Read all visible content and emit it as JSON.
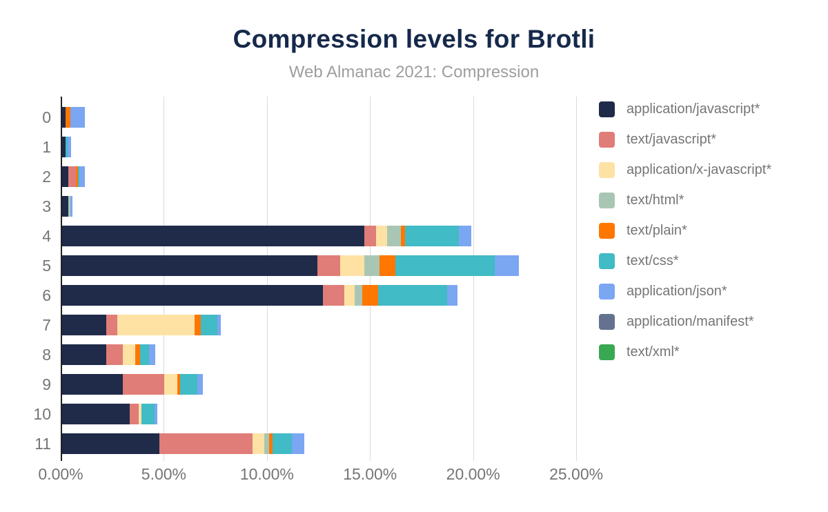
{
  "title": "Compression levels for Brotli",
  "subtitle": "Web Almanac 2021: Compression",
  "chart_data": {
    "type": "bar",
    "orientation": "horizontal",
    "stacked": true,
    "title": "Compression levels for Brotli",
    "subtitle": "Web Almanac 2021: Compression",
    "xlabel": "",
    "ylabel": "",
    "categories": [
      "0",
      "1",
      "2",
      "3",
      "4",
      "5",
      "6",
      "7",
      "8",
      "9",
      "10",
      "11"
    ],
    "x_axis": {
      "unit": "%",
      "max": 25.7,
      "ticks": [
        {
          "label": "0.00%",
          "value": 0
        },
        {
          "label": "5.00%",
          "value": 5
        },
        {
          "label": "10.00%",
          "value": 10
        },
        {
          "label": "15.00%",
          "value": 15
        },
        {
          "label": "20.00%",
          "value": 20
        },
        {
          "label": "25.00%",
          "value": 25
        }
      ]
    },
    "grid": true,
    "legend_position": "right",
    "series": [
      {
        "name": "application/javascript*",
        "color": "#1f2b49",
        "values": [
          0.23,
          0.23,
          0.38,
          0.38,
          14.74,
          12.44,
          12.73,
          2.21,
          2.21,
          3.0,
          3.36,
          4.79
        ]
      },
      {
        "name": "text/javascript*",
        "color": "#e07d78",
        "values": [
          0,
          0,
          0.37,
          0,
          0.54,
          1.11,
          1.04,
          0.53,
          0.79,
          2.01,
          0.42,
          4.5
        ]
      },
      {
        "name": "application/x-javascript*",
        "color": "#fde2a4",
        "values": [
          0,
          0,
          0,
          0,
          0.56,
          1.17,
          0.48,
          3.75,
          0.63,
          0.64,
          0.14,
          0.58
        ]
      },
      {
        "name": "text/html*",
        "color": "#a9c6b4",
        "values": [
          0,
          0,
          0,
          0.1,
          0.65,
          0.73,
          0.39,
          0,
          0,
          0,
          0,
          0.25
        ]
      },
      {
        "name": "text/plain*",
        "color": "#fe7701",
        "values": [
          0.25,
          0,
          0.09,
          0,
          0.2,
          0.78,
          0.77,
          0.3,
          0.22,
          0.13,
          0,
          0.17
        ]
      },
      {
        "name": "text/css*",
        "color": "#41bbc5",
        "values": [
          0,
          0.1,
          0.05,
          0,
          2.62,
          4.81,
          3.34,
          0.82,
          0.45,
          0.84,
          0.64,
          0.93
        ]
      },
      {
        "name": "application/json*",
        "color": "#7ba6f2",
        "values": [
          0.68,
          0.17,
          0.28,
          0.09,
          0.61,
          1.17,
          0.48,
          0.17,
          0.3,
          0.26,
          0.14,
          0.58
        ]
      },
      {
        "name": "application/manifest*",
        "color": "#65728f",
        "values": [
          0,
          0,
          0,
          0,
          0,
          0,
          0,
          0,
          0,
          0,
          0,
          0
        ]
      },
      {
        "name": "text/xml*",
        "color": "#38a952",
        "values": [
          0,
          0,
          0,
          0,
          0,
          0,
          0,
          0,
          0,
          0,
          0,
          0
        ]
      }
    ]
  }
}
